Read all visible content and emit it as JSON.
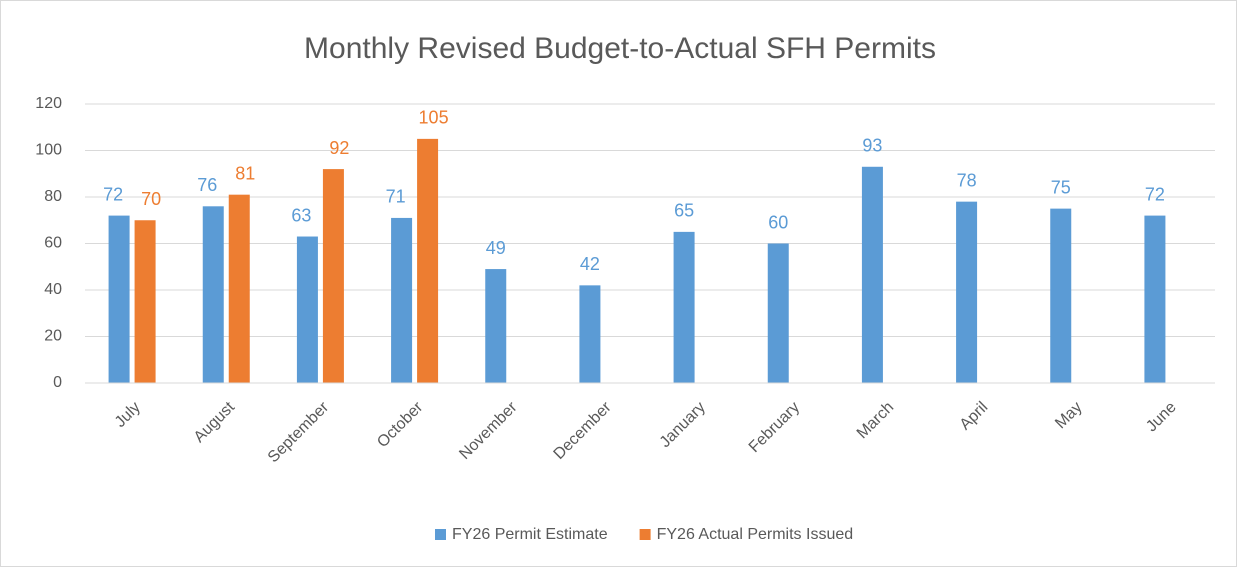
{
  "chart_data": {
    "type": "bar",
    "title": "Monthly Revised Budget-to-Actual SFH Permits",
    "categories": [
      "July",
      "August",
      "September",
      "October",
      "November",
      "December",
      "January",
      "February",
      "March",
      "April",
      "May",
      "June"
    ],
    "series": [
      {
        "name": "FY26 Permit Estimate",
        "color": "#5b9bd5",
        "values": [
          72,
          76,
          63,
          71,
          49,
          42,
          65,
          60,
          93,
          78,
          75,
          72
        ]
      },
      {
        "name": "FY26 Actual Permits Issued",
        "color": "#ed7d31",
        "values": [
          70,
          81,
          92,
          105,
          null,
          null,
          null,
          null,
          null,
          null,
          null,
          null
        ]
      }
    ],
    "ylim": [
      0,
      120
    ],
    "yticks": [
      0,
      20,
      40,
      60,
      80,
      100,
      120
    ],
    "grid": true,
    "legend": "bottom"
  }
}
